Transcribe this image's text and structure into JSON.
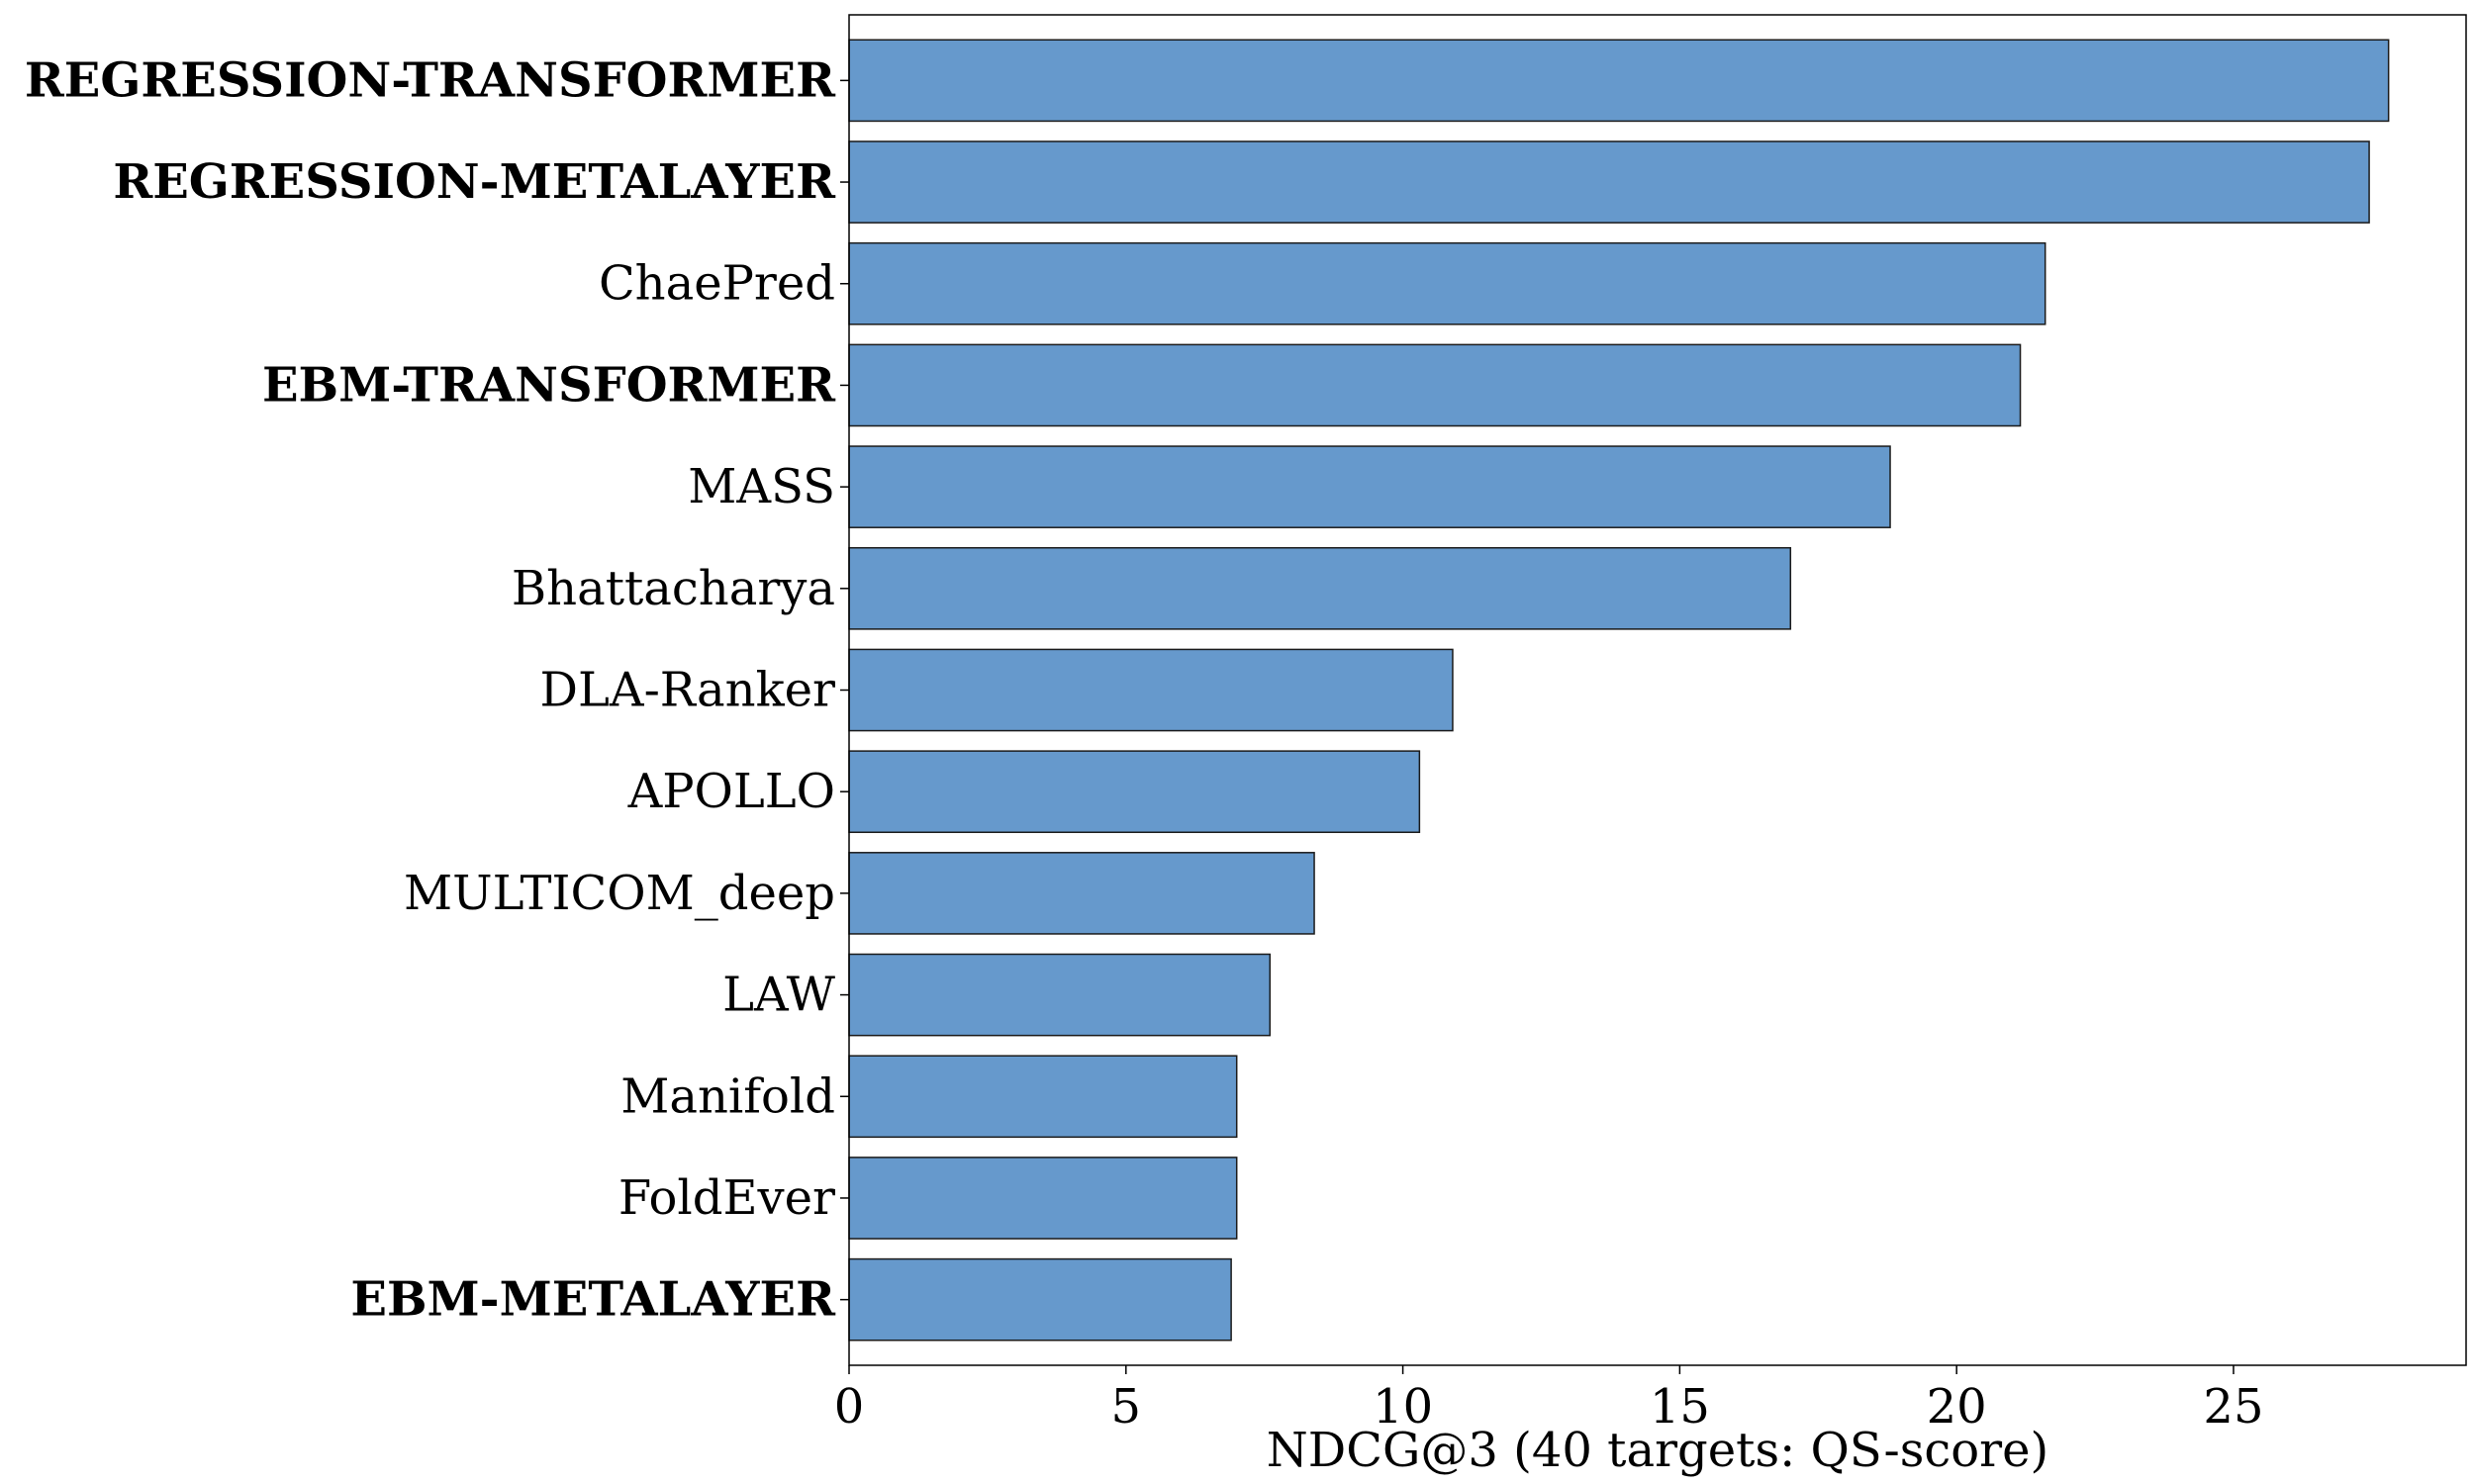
{
  "chart_data": {
    "type": "bar",
    "orientation": "horizontal",
    "xlabel": "NDCG@3 (40 targets: QS-score)",
    "ylabel": "",
    "title": "",
    "xlim": [
      0,
      29.2
    ],
    "xticks": [
      0,
      5,
      10,
      15,
      20,
      25
    ],
    "grid": false,
    "bar_color": "#6699cc",
    "categories": [
      "REGRESSION-TRANSFORMER",
      "REGRESSION-METALAYER",
      "ChaePred",
      "EBM-TRANSFORMER",
      "MASS",
      "Bhattacharya",
      "DLA-Ranker",
      "APOLLO",
      "MULTICOM_deep",
      "LAW",
      "Manifold",
      "FoldEver",
      "EBM-METALAYER"
    ],
    "bold_categories": [
      "REGRESSION-TRANSFORMER",
      "REGRESSION-METALAYER",
      "EBM-TRANSFORMER",
      "EBM-METALAYER"
    ],
    "values": [
      27.8,
      27.45,
      21.6,
      21.15,
      18.8,
      17.0,
      10.9,
      10.3,
      8.4,
      7.6,
      7.0,
      7.0,
      6.9
    ]
  }
}
